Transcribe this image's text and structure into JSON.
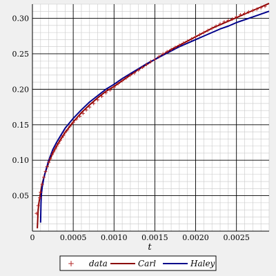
{
  "chart_data": {
    "type": "line",
    "xlabel": "t",
    "xlim": [
      0,
      0.0029
    ],
    "ylim": [
      0,
      0.32
    ],
    "x_ticks": [
      {
        "value": 0,
        "label": "0"
      },
      {
        "value": 0.0005,
        "label": "0.0005"
      },
      {
        "value": 0.001,
        "label": "0.0010"
      },
      {
        "value": 0.0015,
        "label": "0.0015"
      },
      {
        "value": 0.002,
        "label": "0.0020"
      },
      {
        "value": 0.0025,
        "label": "0.0025"
      }
    ],
    "y_ticks": [
      {
        "value": 0.05,
        "label": "0.05"
      },
      {
        "value": 0.1,
        "label": "0.10"
      },
      {
        "value": 0.15,
        "label": "0.15"
      },
      {
        "value": 0.2,
        "label": "0.20"
      },
      {
        "value": 0.25,
        "label": "0.25"
      },
      {
        "value": 0.3,
        "label": "0.30"
      }
    ],
    "grid": true,
    "legend_placement": "bottom",
    "series": [
      {
        "name": "data",
        "style": "markers",
        "marker": "+",
        "color": "#b22222",
        "x": [
          5e-05,
          7e-05,
          9e-05,
          0.0001,
          0.00012,
          0.00014,
          0.00016,
          0.00018,
          0.0002,
          0.00022,
          0.00024,
          0.00026,
          0.00028,
          0.0003,
          0.00032,
          0.00034,
          0.00036,
          0.00038,
          0.0004,
          0.00043,
          0.00046,
          0.0005,
          0.00054,
          0.00058,
          0.00062,
          0.00066,
          0.0007,
          0.00075,
          0.0008,
          0.00085,
          0.0009,
          0.00095,
          0.001,
          0.00105,
          0.0011,
          0.00115,
          0.0012,
          0.00125,
          0.0013,
          0.00135,
          0.0014,
          0.00145,
          0.0015,
          0.00155,
          0.0016,
          0.00165,
          0.0017,
          0.00175,
          0.0018,
          0.00185,
          0.0019,
          0.00195,
          0.002,
          0.00205,
          0.0021,
          0.00215,
          0.0022,
          0.00225,
          0.0023,
          0.00235,
          0.0024,
          0.00245,
          0.0025,
          0.00255,
          0.0026,
          0.00265,
          0.0027,
          0.00275,
          0.0028,
          0.00285
        ],
        "y": [
          0.025,
          0.036,
          0.047,
          0.055,
          0.066,
          0.076,
          0.084,
          0.091,
          0.097,
          0.102,
          0.108,
          0.112,
          0.116,
          0.12,
          0.124,
          0.128,
          0.132,
          0.135,
          0.139,
          0.143,
          0.148,
          0.153,
          0.158,
          0.162,
          0.166,
          0.171,
          0.175,
          0.18,
          0.185,
          0.19,
          0.195,
          0.199,
          0.203,
          0.208,
          0.212,
          0.216,
          0.22,
          0.223,
          0.227,
          0.231,
          0.235,
          0.239,
          0.242,
          0.246,
          0.25,
          0.253,
          0.256,
          0.259,
          0.262,
          0.265,
          0.268,
          0.271,
          0.274,
          0.277,
          0.28,
          0.283,
          0.286,
          0.289,
          0.292,
          0.295,
          0.297,
          0.299,
          0.302,
          0.305,
          0.307,
          0.309,
          0.311,
          0.313,
          0.315,
          0.317
        ]
      },
      {
        "name": "Carl",
        "style": "line",
        "color": "#8b0000",
        "x": [
          6e-05,
          7e-05,
          8e-05,
          0.0001,
          0.00012,
          0.00015,
          0.0002,
          0.00025,
          0.0003,
          0.0004,
          0.0005,
          0.0006,
          0.0007,
          0.0008,
          0.0009,
          0.001,
          0.0011,
          0.0012,
          0.0013,
          0.0014,
          0.0015,
          0.0016,
          0.0017,
          0.0018,
          0.0019,
          0.002,
          0.0021,
          0.0022,
          0.0023,
          0.0024,
          0.0025,
          0.0026,
          0.0027,
          0.0028,
          0.0029
        ],
        "y": [
          0.004,
          0.03,
          0.04,
          0.055,
          0.067,
          0.08,
          0.097,
          0.11,
          0.121,
          0.139,
          0.154,
          0.167,
          0.178,
          0.188,
          0.197,
          0.204,
          0.212,
          0.22,
          0.228,
          0.235,
          0.242,
          0.249,
          0.256,
          0.262,
          0.268,
          0.274,
          0.28,
          0.286,
          0.291,
          0.296,
          0.301,
          0.306,
          0.311,
          0.316,
          0.321
        ]
      },
      {
        "name": "Haley",
        "style": "line",
        "color": "#00008b",
        "x": [
          0.0001,
          0.000105,
          0.00011,
          0.00012,
          0.00014,
          0.00016,
          0.0002,
          0.00025,
          0.0003,
          0.0004,
          0.0005,
          0.0006,
          0.0007,
          0.0008,
          0.0009,
          0.001,
          0.0011,
          0.0012,
          0.0013,
          0.0014,
          0.0015,
          0.0016,
          0.0017,
          0.0018,
          0.0019,
          0.002,
          0.0021,
          0.0022,
          0.0023,
          0.0024,
          0.0025,
          0.0026,
          0.0027,
          0.0028,
          0.0029
        ],
        "y": [
          0.012,
          0.04,
          0.052,
          0.062,
          0.075,
          0.084,
          0.1,
          0.115,
          0.126,
          0.145,
          0.159,
          0.171,
          0.182,
          0.191,
          0.2,
          0.207,
          0.215,
          0.222,
          0.229,
          0.236,
          0.242,
          0.248,
          0.254,
          0.26,
          0.265,
          0.27,
          0.275,
          0.28,
          0.285,
          0.289,
          0.294,
          0.298,
          0.302,
          0.306,
          0.31
        ]
      }
    ]
  }
}
